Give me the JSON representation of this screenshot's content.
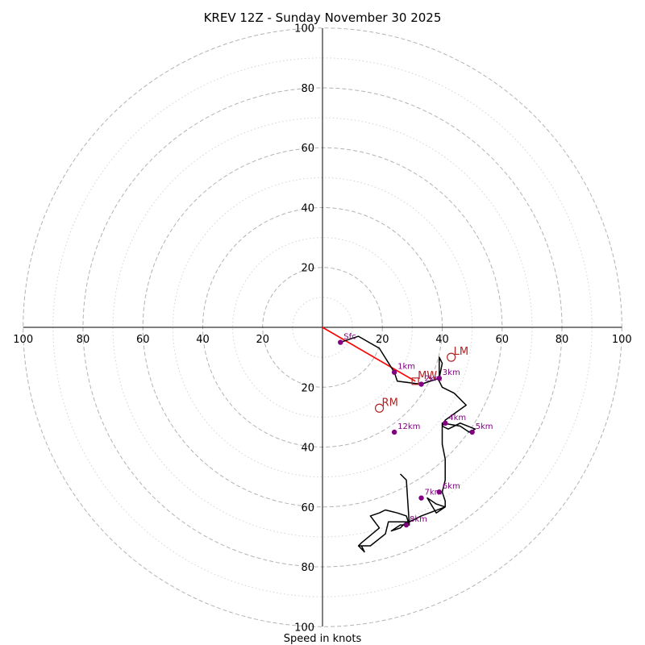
{
  "chart_data": {
    "type": "hodograph",
    "title": "KREV 12Z - Sunday November 30 2025",
    "xlabel": "Speed in knots",
    "units": "knots",
    "range": [
      -100,
      100
    ],
    "rings_major": [
      20,
      40,
      60,
      80,
      100
    ],
    "rings_minor": [
      10,
      30,
      50,
      70,
      90
    ],
    "x_ticks": [
      {
        "value": -100,
        "label": "100"
      },
      {
        "value": -80,
        "label": "80"
      },
      {
        "value": -60,
        "label": "60"
      },
      {
        "value": -40,
        "label": "40"
      },
      {
        "value": -20,
        "label": "20"
      },
      {
        "value": 20,
        "label": "20"
      },
      {
        "value": 40,
        "label": "40"
      },
      {
        "value": 60,
        "label": "60"
      },
      {
        "value": 80,
        "label": "80"
      },
      {
        "value": 100,
        "label": "100"
      }
    ],
    "y_ticks": [
      {
        "value": 100,
        "label": "100"
      },
      {
        "value": 80,
        "label": "80"
      },
      {
        "value": 60,
        "label": "60"
      },
      {
        "value": 40,
        "label": "40"
      },
      {
        "value": 20,
        "label": "20"
      },
      {
        "value": -20,
        "label": "20"
      },
      {
        "value": -40,
        "label": "40"
      },
      {
        "value": -60,
        "label": "60"
      },
      {
        "value": -80,
        "label": "80"
      },
      {
        "value": -100,
        "label": "100"
      }
    ],
    "hodograph": {
      "u": [
        6,
        12,
        19,
        24,
        25,
        33,
        39,
        40,
        39,
        39,
        40,
        44,
        48,
        41,
        40,
        42,
        46,
        51,
        49,
        46,
        40,
        40,
        41,
        41,
        41,
        40,
        41,
        41,
        38,
        35,
        38,
        41,
        33,
        29,
        22,
        21,
        16,
        12,
        14,
        13,
        12,
        13,
        19,
        16,
        19,
        21,
        25,
        28,
        29,
        28,
        26,
        23,
        26,
        29,
        28,
        26
      ],
      "v": [
        -5,
        -3,
        -7,
        -15,
        -18,
        -19,
        -17,
        -12,
        -10,
        -18,
        -20,
        -22,
        -26,
        -31,
        -33,
        -34,
        -32,
        -34,
        -35,
        -33,
        -32,
        -39,
        -44,
        -48,
        -51,
        -55,
        -58,
        -60,
        -62,
        -57,
        -59,
        -60,
        -63,
        -65,
        -65,
        -69,
        -73,
        -73,
        -75,
        -73,
        -73,
        -72,
        -67,
        -63,
        -62,
        -61,
        -62,
        -63,
        -66,
        -65,
        -67,
        -68,
        -66,
        -66,
        -51,
        -49
      ]
    },
    "height_markers": [
      {
        "label": "Sfc",
        "u": 6,
        "v": -5
      },
      {
        "label": "1km",
        "u": 24,
        "v": -15
      },
      {
        "label": "2km",
        "u": 33,
        "v": -19
      },
      {
        "label": "3km",
        "u": 39,
        "v": -17
      },
      {
        "label": "4km",
        "u": 41,
        "v": -32
      },
      {
        "label": "5km",
        "u": 50,
        "v": -35
      },
      {
        "label": "6km",
        "u": 39,
        "v": -55
      },
      {
        "label": "7km",
        "u": 33,
        "v": -57
      },
      {
        "label": "8km",
        "u": 28,
        "v": -66
      },
      {
        "label": "12km",
        "u": 24,
        "v": -35
      }
    ],
    "storm_motion": [
      {
        "label": "LM",
        "u": 43,
        "v": -10,
        "marker": "circle"
      },
      {
        "label": "MW",
        "u": 31,
        "v": -18,
        "marker": "square"
      },
      {
        "label": "RM",
        "u": 19,
        "v": -27,
        "marker": "circle"
      }
    ],
    "shear_vector": {
      "from_u": 0,
      "from_v": 0,
      "to_u": 31,
      "to_v": -18
    },
    "colors": {
      "ring_major": "#b3b3b3",
      "ring_minor": "#d3d3d3",
      "trace": "#000000",
      "marker": "#800080",
      "storm": "#b22222",
      "shear": "#ff0000",
      "axis": "#000000"
    }
  }
}
